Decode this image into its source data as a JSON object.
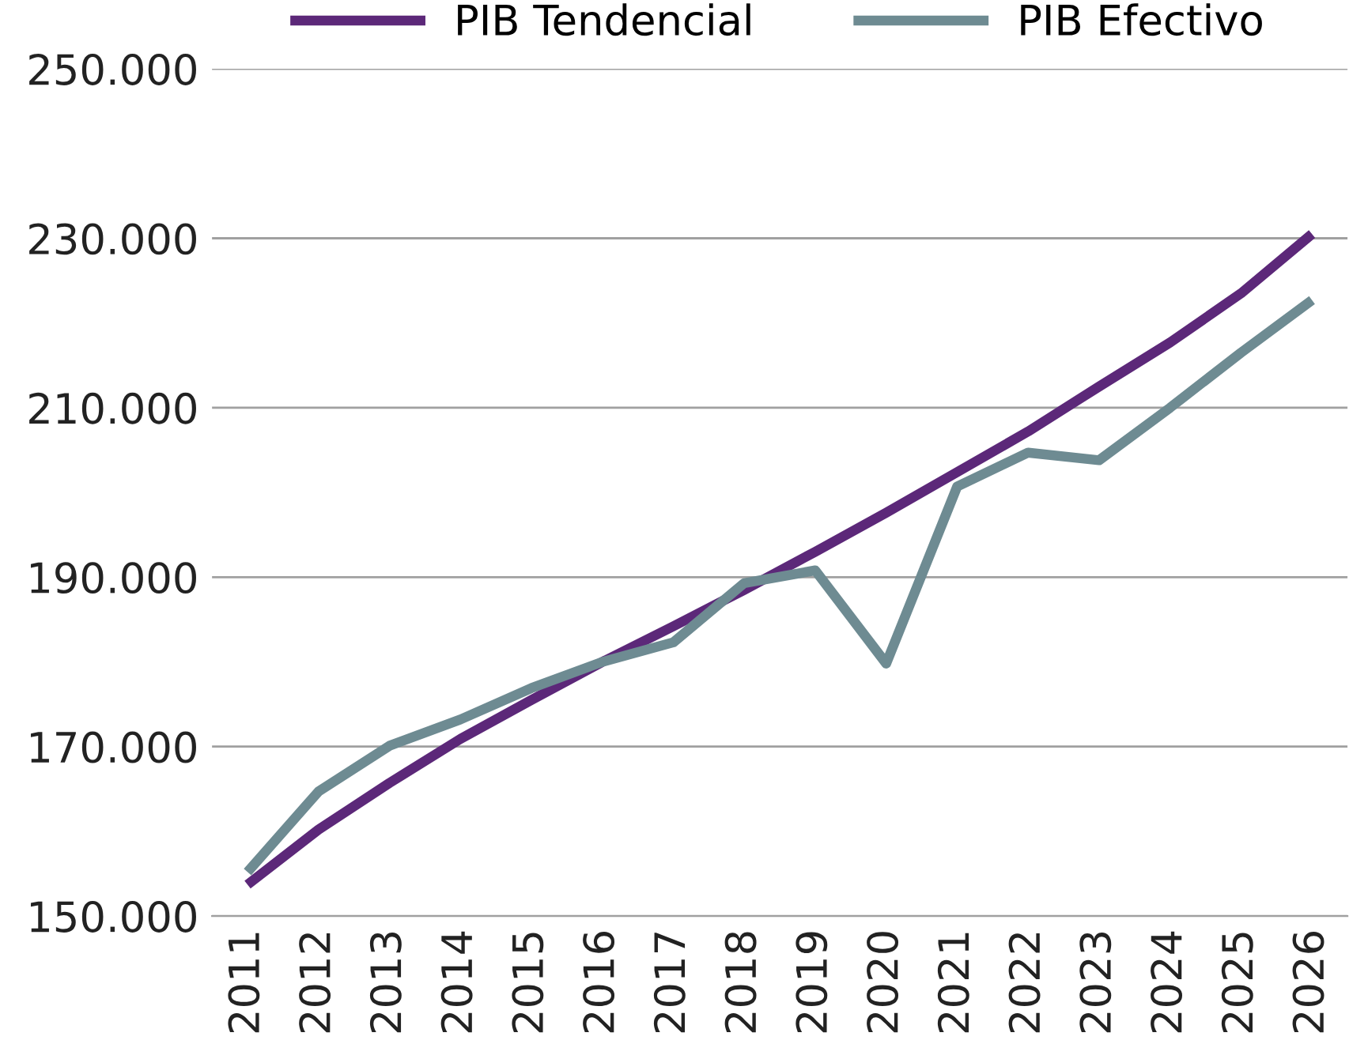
{
  "chart_data": {
    "type": "line",
    "categories": [
      "2011",
      "2012",
      "2013",
      "2014",
      "2015",
      "2016",
      "2017",
      "2018",
      "2019",
      "2020",
      "2021",
      "2022",
      "2023",
      "2024",
      "2025",
      "2026"
    ],
    "series": [
      {
        "name": "PIB Tendencial",
        "color": "#5c2879",
        "values": [
          153700,
          160200,
          165700,
          170900,
          175500,
          180000,
          184200,
          188500,
          193000,
          197600,
          202400,
          207200,
          212500,
          217700,
          223500,
          230500
        ]
      },
      {
        "name": "PIB Efectivo",
        "color": "#6e8b92",
        "values": [
          155200,
          164700,
          170100,
          173200,
          176900,
          180000,
          182300,
          189300,
          190800,
          179800,
          200700,
          204700,
          203800,
          210000,
          216500,
          222700
        ]
      }
    ],
    "ylim": [
      150000,
      250000
    ],
    "yticks": [
      {
        "value": 150000,
        "label": "150.000"
      },
      {
        "value": 170000,
        "label": "170.000"
      },
      {
        "value": 190000,
        "label": "190.000"
      },
      {
        "value": 210000,
        "label": "210.000"
      },
      {
        "value": 230000,
        "label": "230.000"
      },
      {
        "value": 250000,
        "label": "250.000"
      }
    ],
    "grid": "y",
    "legend": "top",
    "marker": "none",
    "line_style": "solid"
  }
}
